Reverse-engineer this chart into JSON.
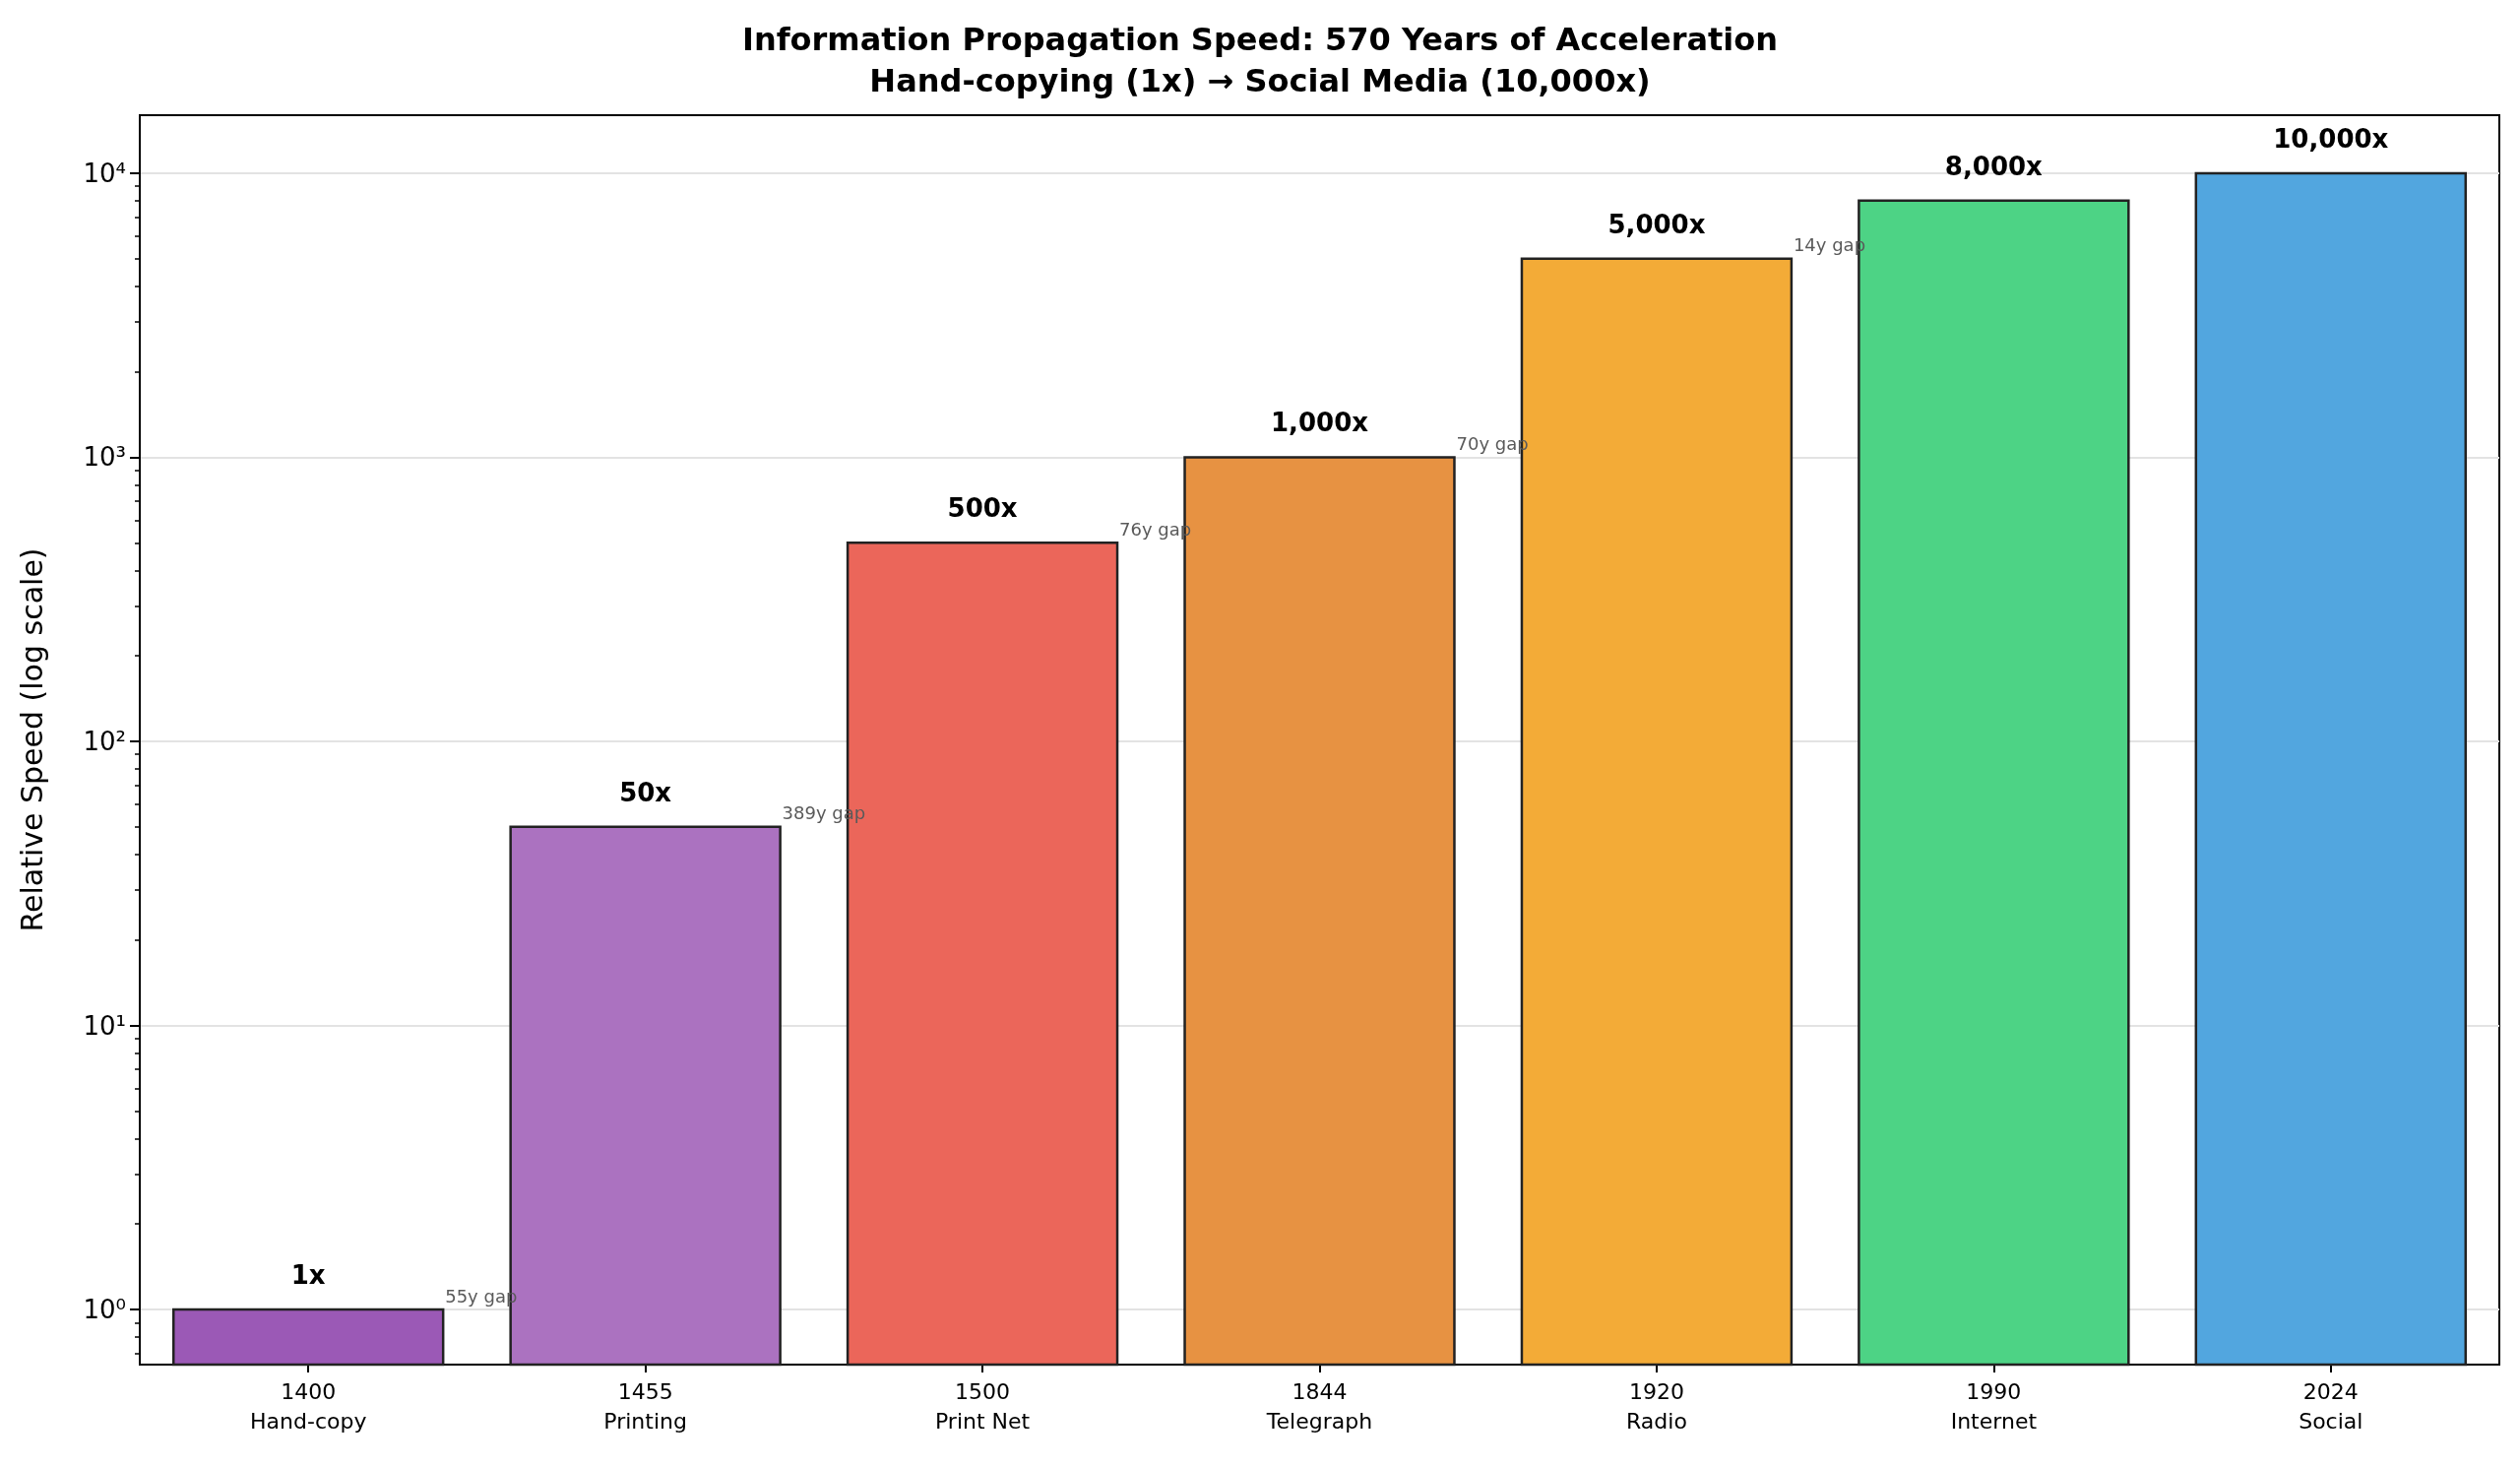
{
  "chart_data": {
    "type": "bar",
    "title": "Information Propagation Speed: 570 Years of Acceleration",
    "subtitle": "Hand-copying (1x) → Social Media (10,000x)",
    "ylabel": "Relative Speed (log scale)",
    "categories": [
      "1400\nHand-copy",
      "1455\nPrinting",
      "1500\nPrint Net",
      "1844\nTelegraph",
      "1920\nRadio",
      "1990\nInternet",
      "2024\nSocial"
    ],
    "values": [
      1,
      50,
      500,
      1000,
      5000,
      8000,
      10000
    ],
    "colors": [
      "#9b59b6",
      "#ab72c0",
      "#eb665a",
      "#e79242",
      "#f3ab37",
      "#4dd385",
      "#52a6df"
    ],
    "value_labels": [
      "1x",
      "50x",
      "500x",
      "1,000x",
      "5,000x",
      "8,000x",
      "10,000x"
    ],
    "annotations": [
      "55y gap",
      "389y gap",
      "76y gap",
      "70y gap",
      "14y gap"
    ],
    "log": true,
    "ylim": [
      0.64,
      16000
    ],
    "yticks": [
      {
        "value": 1,
        "label": "10⁰"
      },
      {
        "value": 10,
        "label": "10¹"
      },
      {
        "value": 100,
        "label": "10²"
      },
      {
        "value": 1000,
        "label": "10³"
      },
      {
        "value": 10000,
        "label": "10⁴"
      }
    ],
    "grid": "y"
  }
}
